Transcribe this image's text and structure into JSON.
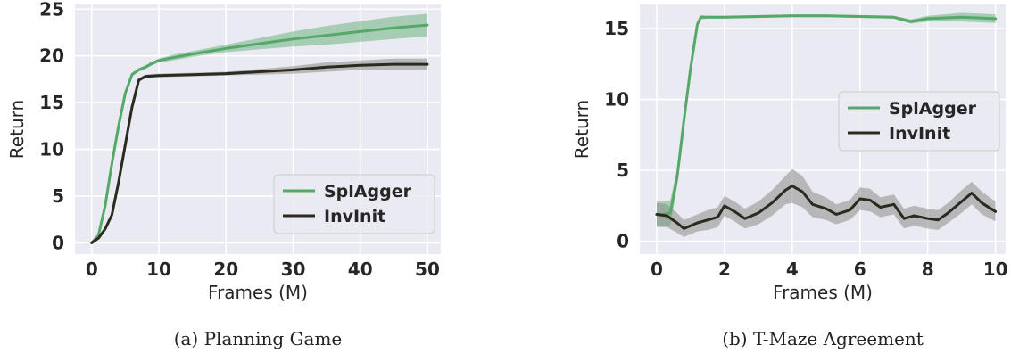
{
  "colors": {
    "background": "#eaeaf2",
    "grid": "#ffffff",
    "splagger": "#55a868",
    "invinit": "#2a2a1e",
    "invinit_band": "#8c8c8c"
  },
  "chart_data": [
    {
      "type": "line",
      "caption": "(a) Planning Game",
      "xlabel": "Frames (M)",
      "ylabel": "Return",
      "xlim": [
        -2.5,
        52
      ],
      "ylim": [
        -1.2,
        25.5
      ],
      "xticks": [
        0,
        10,
        20,
        30,
        40,
        50
      ],
      "yticks": [
        0,
        5,
        10,
        15,
        20,
        25
      ],
      "grid": true,
      "legend_position": "lower-right",
      "series": [
        {
          "name": "SplAgger",
          "x": [
            0,
            1,
            2,
            3,
            4,
            5,
            6,
            7,
            8,
            9,
            10,
            12,
            15,
            20,
            25,
            30,
            35,
            40,
            45,
            50
          ],
          "y": [
            0,
            0.8,
            4,
            8.5,
            12.5,
            16,
            18,
            18.5,
            18.8,
            19.2,
            19.5,
            19.8,
            20.2,
            20.8,
            21.3,
            21.8,
            22.2,
            22.6,
            23.0,
            23.3
          ],
          "band": [
            0,
            0,
            0.1,
            0.2,
            0.2,
            0.2,
            0.2,
            0.2,
            0.2,
            0.2,
            0.2,
            0.3,
            0.3,
            0.4,
            0.6,
            0.8,
            1.0,
            1.1,
            1.2,
            1.2
          ]
        },
        {
          "name": "InvInit",
          "x": [
            0,
            1,
            2,
            3,
            4,
            5,
            6,
            7,
            8,
            9,
            10,
            15,
            20,
            25,
            30,
            35,
            40,
            45,
            50
          ],
          "y": [
            0,
            0.5,
            1.5,
            3,
            6.5,
            10.5,
            14.5,
            17.4,
            17.8,
            17.85,
            17.9,
            18.0,
            18.1,
            18.3,
            18.5,
            18.8,
            19.0,
            19.1,
            19.1
          ],
          "band": [
            0,
            0,
            0.1,
            0.2,
            0.2,
            0.2,
            0.2,
            0.2,
            0.2,
            0.2,
            0.2,
            0.2,
            0.2,
            0.3,
            0.4,
            0.5,
            0.5,
            0.6,
            0.6
          ]
        }
      ]
    },
    {
      "type": "line",
      "caption": "(b) T-Maze Agreement",
      "xlabel": "Frames (M)",
      "ylabel": "Return",
      "xlim": [
        -0.5,
        10.3
      ],
      "ylim": [
        -0.9,
        16.7
      ],
      "xticks": [
        0,
        2,
        4,
        6,
        8,
        10
      ],
      "yticks": [
        0,
        5,
        10,
        15
      ],
      "grid": true,
      "legend_position": "center-right",
      "series": [
        {
          "name": "SplAgger",
          "x": [
            0,
            0.2,
            0.4,
            0.6,
            0.8,
            1.0,
            1.2,
            1.3,
            1.5,
            2,
            3,
            4,
            5,
            6,
            7,
            7.5,
            8,
            9,
            10
          ],
          "y": [
            1.9,
            1.9,
            2.0,
            4.5,
            8.5,
            12.2,
            15.3,
            15.8,
            15.8,
            15.8,
            15.85,
            15.9,
            15.9,
            15.85,
            15.8,
            15.5,
            15.7,
            15.8,
            15.7
          ],
          "band": [
            0.9,
            0.9,
            0.9,
            0.6,
            0.4,
            0.3,
            0.2,
            0.15,
            0.1,
            0.1,
            0.1,
            0.1,
            0.1,
            0.1,
            0.1,
            0.15,
            0.2,
            0.3,
            0.3
          ]
        },
        {
          "name": "InvInit",
          "x": [
            0,
            0.3,
            0.6,
            0.8,
            1.0,
            1.2,
            1.5,
            1.8,
            2.0,
            2.3,
            2.6,
            3.0,
            3.4,
            3.8,
            4.0,
            4.3,
            4.6,
            5.0,
            5.3,
            5.7,
            6.0,
            6.3,
            6.6,
            7.0,
            7.3,
            7.6,
            8.0,
            8.3,
            8.6,
            9.0,
            9.3,
            9.6,
            10.0
          ],
          "y": [
            1.9,
            1.8,
            1.3,
            0.9,
            1.1,
            1.3,
            1.5,
            1.7,
            2.5,
            2.1,
            1.6,
            2.0,
            2.7,
            3.6,
            3.9,
            3.5,
            2.6,
            2.3,
            1.9,
            2.2,
            3.0,
            2.9,
            2.4,
            2.6,
            1.6,
            1.8,
            1.6,
            1.5,
            2.0,
            2.8,
            3.4,
            2.7,
            2.1
          ],
          "band": [
            0.8,
            0.8,
            0.7,
            0.6,
            0.6,
            0.6,
            0.7,
            0.7,
            0.7,
            0.7,
            0.7,
            0.8,
            0.9,
            1.0,
            1.2,
            1.1,
            0.9,
            0.8,
            0.7,
            0.7,
            0.8,
            0.8,
            0.7,
            0.7,
            0.7,
            0.7,
            0.7,
            0.7,
            0.7,
            0.8,
            0.8,
            0.8,
            0.7
          ]
        }
      ]
    }
  ]
}
